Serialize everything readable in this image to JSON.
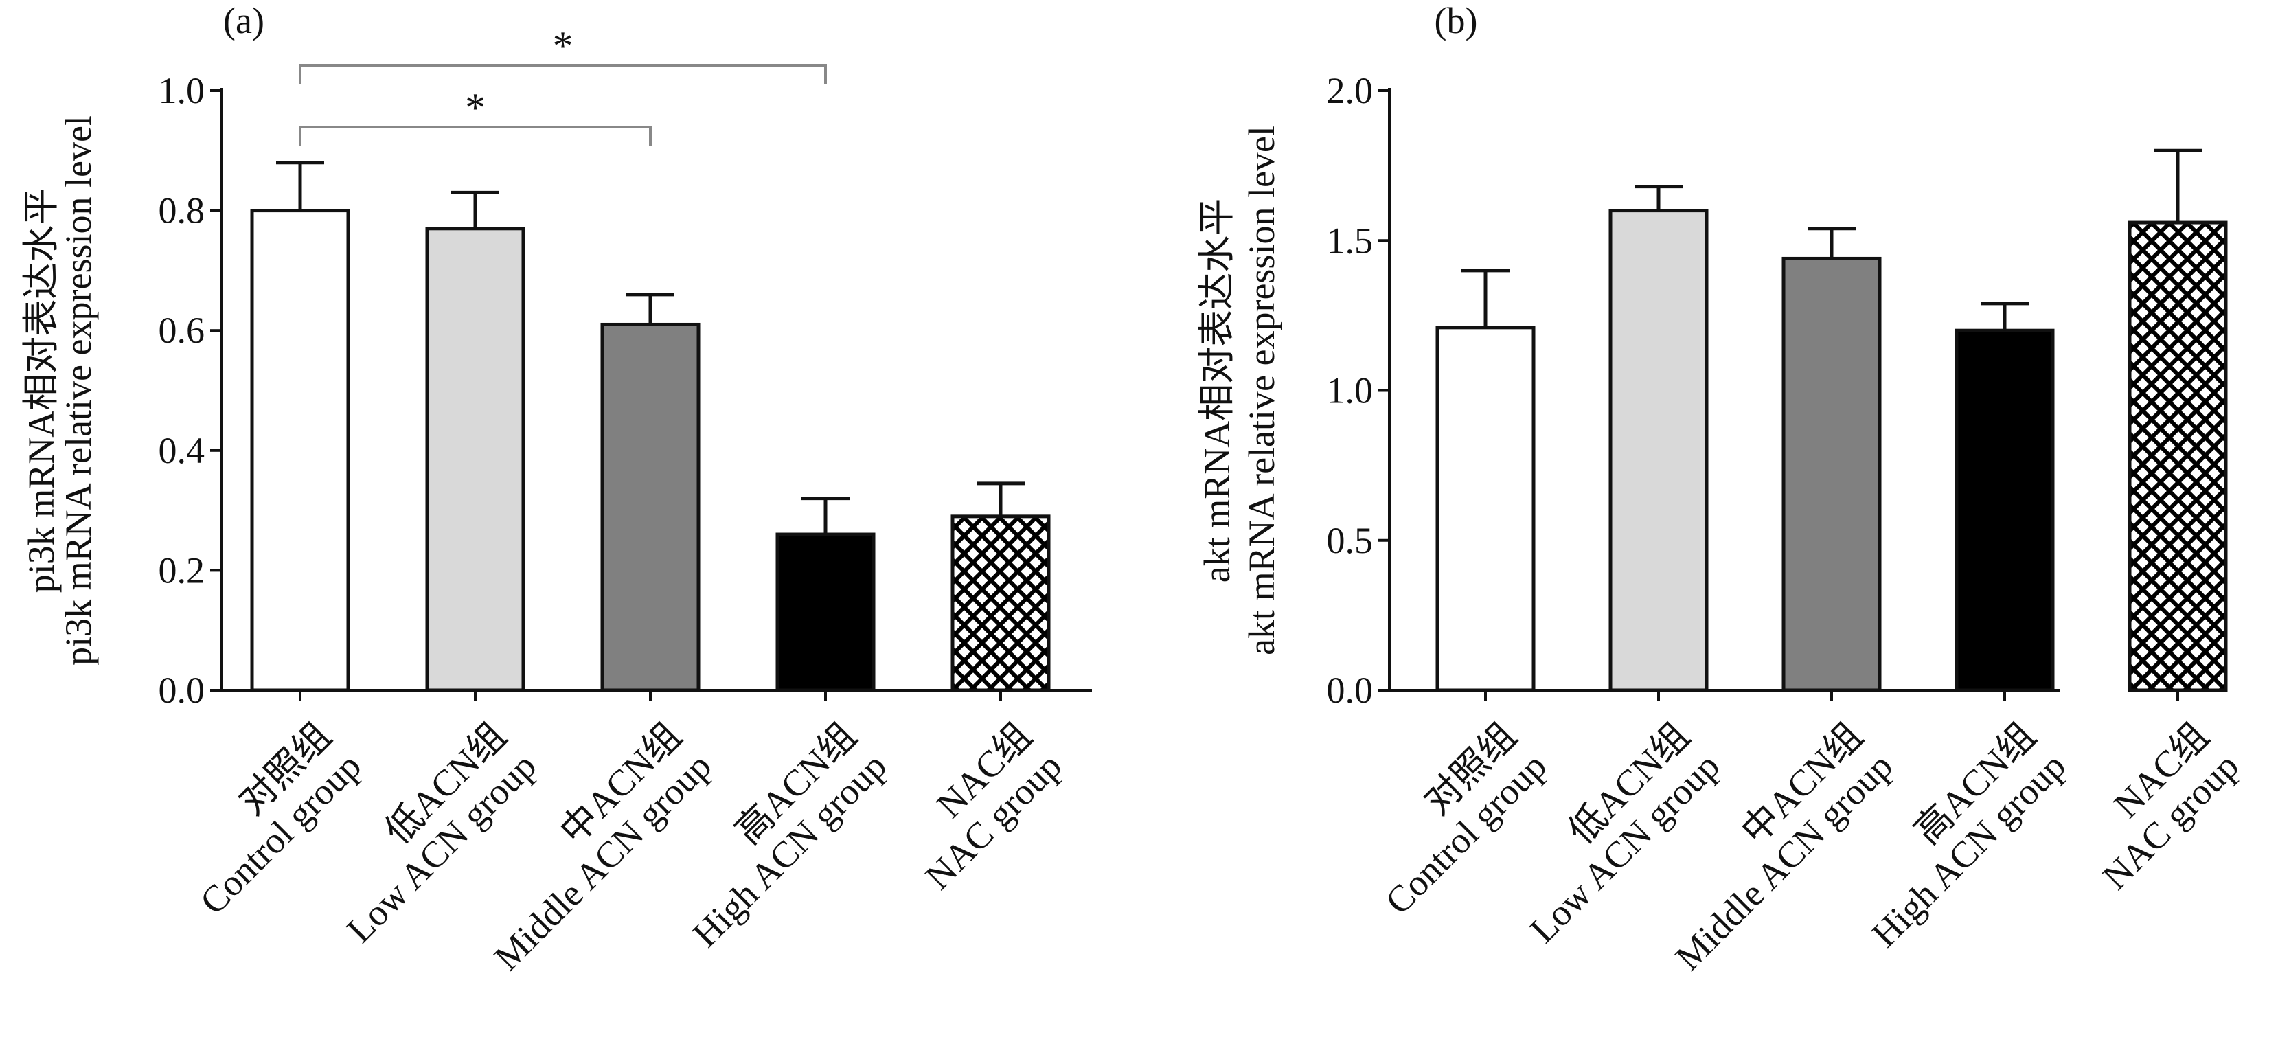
{
  "chart_data": [
    {
      "panel": "(a)",
      "type": "bar",
      "ylabel_cn": "pi3k mRNA相对表达水平",
      "ylabel_en": "pi3k mRNA relative expression level",
      "ylabel_gene": "pi3k",
      "ylim": [
        0,
        1.0
      ],
      "yticks": [
        "0.0",
        "0.2",
        "0.4",
        "0.6",
        "0.8",
        "1.0"
      ],
      "categories": [
        {
          "cn": "对照组",
          "en": "Control group"
        },
        {
          "cn": "低ACN组",
          "en": "Low ACN group"
        },
        {
          "cn": "中ACN组",
          "en": "Middle ACN group"
        },
        {
          "cn": "高ACN组",
          "en": "High ACN group"
        },
        {
          "cn": "NAC组",
          "en": "NAC group"
        }
      ],
      "values": [
        0.8,
        0.77,
        0.61,
        0.26,
        0.29
      ],
      "errors": [
        0.08,
        0.06,
        0.05,
        0.06,
        0.055
      ],
      "fills": [
        "#ffffff",
        "#d9d9d9",
        "#808080",
        "#000000",
        "crosshatch"
      ],
      "significance": [
        {
          "from": 0,
          "to": 2,
          "label": "*"
        },
        {
          "from": 0,
          "to": 3,
          "label": "*"
        }
      ],
      "grid": false
    },
    {
      "panel": "(b)",
      "type": "bar",
      "ylabel_cn": "akt mRNA相对表达水平",
      "ylabel_en": "akt mRNA relative expression level",
      "ylabel_gene": "akt",
      "ylim": [
        0,
        2.0
      ],
      "yticks": [
        "0.0",
        "0.5",
        "1.0",
        "1.5",
        "2.0"
      ],
      "categories": [
        {
          "cn": "对照组",
          "en": "Control group"
        },
        {
          "cn": "低ACN组",
          "en": "Low ACN group"
        },
        {
          "cn": "中ACN组",
          "en": "Middle ACN group"
        },
        {
          "cn": "高ACN组",
          "en": "High ACN group"
        },
        {
          "cn": "NAC组",
          "en": "NAC group"
        }
      ],
      "values": [
        1.21,
        1.6,
        1.44,
        1.2,
        1.56
      ],
      "errors": [
        0.19,
        0.08,
        0.1,
        0.09,
        0.24
      ],
      "fills": [
        "#ffffff",
        "#d9d9d9",
        "#808080",
        "#000000",
        "crosshatch"
      ],
      "significance": [],
      "grid": false
    }
  ]
}
